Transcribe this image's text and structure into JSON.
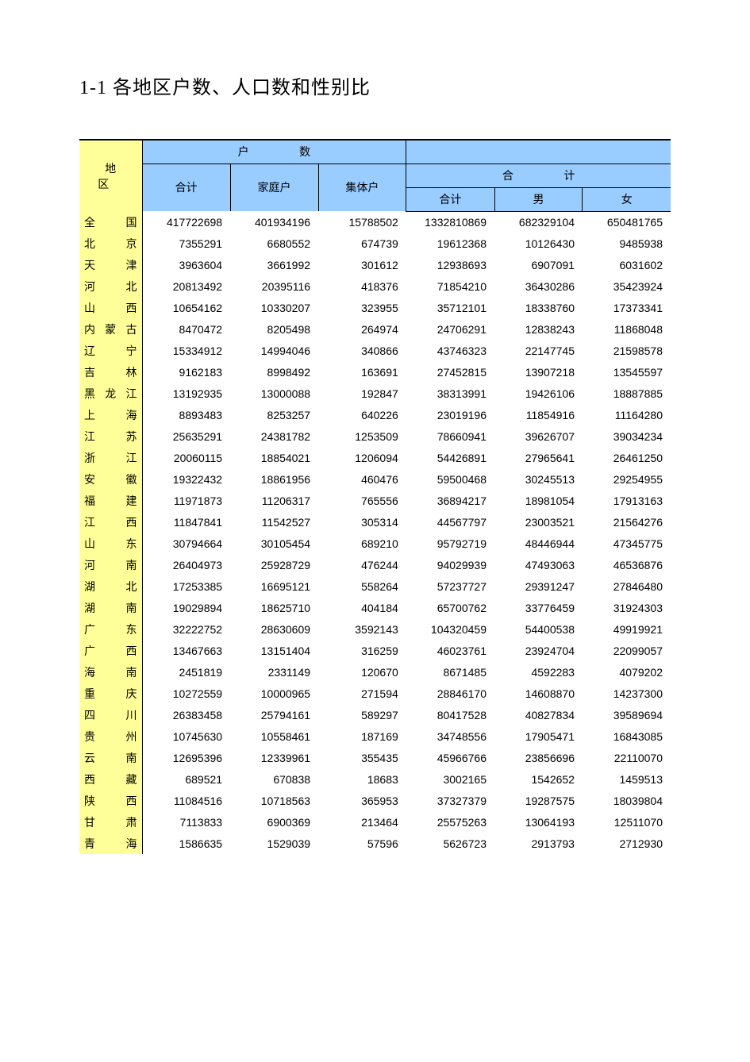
{
  "title": "1-1  各地区户数、人口数和性别比",
  "colors": {
    "header_bg": "#99ccff",
    "region_bg": "#ffff99",
    "page_bg": "#ffffff",
    "text": "#000000",
    "border": "#000000"
  },
  "table": {
    "headers": {
      "region": "地  区",
      "household_count": "户        数",
      "hh_total": "合计",
      "hh_family": "家庭户",
      "hh_collective": "集体户",
      "pop_total_group": "合        计",
      "pop_total": "合计",
      "pop_male": "男",
      "pop_female": "女"
    },
    "columns": [
      "region",
      "hh_total",
      "hh_family",
      "hh_collective",
      "pop_total",
      "pop_male",
      "pop_female"
    ],
    "rows": [
      {
        "region": "全  国",
        "hh_total": "417722698",
        "hh_family": "401934196",
        "hh_collective": "15788502",
        "pop_total": "1332810869",
        "pop_male": "682329104",
        "pop_female": "650481765"
      },
      {
        "region": "北  京",
        "hh_total": "7355291",
        "hh_family": "6680552",
        "hh_collective": "674739",
        "pop_total": "19612368",
        "pop_male": "10126430",
        "pop_female": "9485938"
      },
      {
        "region": "天  津",
        "hh_total": "3963604",
        "hh_family": "3661992",
        "hh_collective": "301612",
        "pop_total": "12938693",
        "pop_male": "6907091",
        "pop_female": "6031602"
      },
      {
        "region": "河  北",
        "hh_total": "20813492",
        "hh_family": "20395116",
        "hh_collective": "418376",
        "pop_total": "71854210",
        "pop_male": "36430286",
        "pop_female": "35423924"
      },
      {
        "region": "山  西",
        "hh_total": "10654162",
        "hh_family": "10330207",
        "hh_collective": "323955",
        "pop_total": "35712101",
        "pop_male": "18338760",
        "pop_female": "17373341"
      },
      {
        "region": "内蒙古",
        "hh_total": "8470472",
        "hh_family": "8205498",
        "hh_collective": "264974",
        "pop_total": "24706291",
        "pop_male": "12838243",
        "pop_female": "11868048"
      },
      {
        "region": "辽  宁",
        "hh_total": "15334912",
        "hh_family": "14994046",
        "hh_collective": "340866",
        "pop_total": "43746323",
        "pop_male": "22147745",
        "pop_female": "21598578"
      },
      {
        "region": "吉  林",
        "hh_total": "9162183",
        "hh_family": "8998492",
        "hh_collective": "163691",
        "pop_total": "27452815",
        "pop_male": "13907218",
        "pop_female": "13545597"
      },
      {
        "region": "黑龙江",
        "hh_total": "13192935",
        "hh_family": "13000088",
        "hh_collective": "192847",
        "pop_total": "38313991",
        "pop_male": "19426106",
        "pop_female": "18887885"
      },
      {
        "region": "上  海",
        "hh_total": "8893483",
        "hh_family": "8253257",
        "hh_collective": "640226",
        "pop_total": "23019196",
        "pop_male": "11854916",
        "pop_female": "11164280"
      },
      {
        "region": "江  苏",
        "hh_total": "25635291",
        "hh_family": "24381782",
        "hh_collective": "1253509",
        "pop_total": "78660941",
        "pop_male": "39626707",
        "pop_female": "39034234"
      },
      {
        "region": "浙  江",
        "hh_total": "20060115",
        "hh_family": "18854021",
        "hh_collective": "1206094",
        "pop_total": "54426891",
        "pop_male": "27965641",
        "pop_female": "26461250"
      },
      {
        "region": "安  徽",
        "hh_total": "19322432",
        "hh_family": "18861956",
        "hh_collective": "460476",
        "pop_total": "59500468",
        "pop_male": "30245513",
        "pop_female": "29254955"
      },
      {
        "region": "福  建",
        "hh_total": "11971873",
        "hh_family": "11206317",
        "hh_collective": "765556",
        "pop_total": "36894217",
        "pop_male": "18981054",
        "pop_female": "17913163"
      },
      {
        "region": "江  西",
        "hh_total": "11847841",
        "hh_family": "11542527",
        "hh_collective": "305314",
        "pop_total": "44567797",
        "pop_male": "23003521",
        "pop_female": "21564276"
      },
      {
        "region": "山  东",
        "hh_total": "30794664",
        "hh_family": "30105454",
        "hh_collective": "689210",
        "pop_total": "95792719",
        "pop_male": "48446944",
        "pop_female": "47345775"
      },
      {
        "region": "河  南",
        "hh_total": "26404973",
        "hh_family": "25928729",
        "hh_collective": "476244",
        "pop_total": "94029939",
        "pop_male": "47493063",
        "pop_female": "46536876"
      },
      {
        "region": "湖  北",
        "hh_total": "17253385",
        "hh_family": "16695121",
        "hh_collective": "558264",
        "pop_total": "57237727",
        "pop_male": "29391247",
        "pop_female": "27846480"
      },
      {
        "region": "湖  南",
        "hh_total": "19029894",
        "hh_family": "18625710",
        "hh_collective": "404184",
        "pop_total": "65700762",
        "pop_male": "33776459",
        "pop_female": "31924303"
      },
      {
        "region": "广  东",
        "hh_total": "32222752",
        "hh_family": "28630609",
        "hh_collective": "3592143",
        "pop_total": "104320459",
        "pop_male": "54400538",
        "pop_female": "49919921"
      },
      {
        "region": "广  西",
        "hh_total": "13467663",
        "hh_family": "13151404",
        "hh_collective": "316259",
        "pop_total": "46023761",
        "pop_male": "23924704",
        "pop_female": "22099057"
      },
      {
        "region": "海  南",
        "hh_total": "2451819",
        "hh_family": "2331149",
        "hh_collective": "120670",
        "pop_total": "8671485",
        "pop_male": "4592283",
        "pop_female": "4079202"
      },
      {
        "region": "重  庆",
        "hh_total": "10272559",
        "hh_family": "10000965",
        "hh_collective": "271594",
        "pop_total": "28846170",
        "pop_male": "14608870",
        "pop_female": "14237300"
      },
      {
        "region": "四  川",
        "hh_total": "26383458",
        "hh_family": "25794161",
        "hh_collective": "589297",
        "pop_total": "80417528",
        "pop_male": "40827834",
        "pop_female": "39589694"
      },
      {
        "region": "贵  州",
        "hh_total": "10745630",
        "hh_family": "10558461",
        "hh_collective": "187169",
        "pop_total": "34748556",
        "pop_male": "17905471",
        "pop_female": "16843085"
      },
      {
        "region": "云  南",
        "hh_total": "12695396",
        "hh_family": "12339961",
        "hh_collective": "355435",
        "pop_total": "45966766",
        "pop_male": "23856696",
        "pop_female": "22110070"
      },
      {
        "region": "西  藏",
        "hh_total": "689521",
        "hh_family": "670838",
        "hh_collective": "18683",
        "pop_total": "3002165",
        "pop_male": "1542652",
        "pop_female": "1459513"
      },
      {
        "region": "陕  西",
        "hh_total": "11084516",
        "hh_family": "10718563",
        "hh_collective": "365953",
        "pop_total": "37327379",
        "pop_male": "19287575",
        "pop_female": "18039804"
      },
      {
        "region": "甘  肃",
        "hh_total": "7113833",
        "hh_family": "6900369",
        "hh_collective": "213464",
        "pop_total": "25575263",
        "pop_male": "13064193",
        "pop_female": "12511070"
      },
      {
        "region": "青  海",
        "hh_total": "1586635",
        "hh_family": "1529039",
        "hh_collective": "57596",
        "pop_total": "5626723",
        "pop_male": "2913793",
        "pop_female": "2712930"
      }
    ]
  }
}
